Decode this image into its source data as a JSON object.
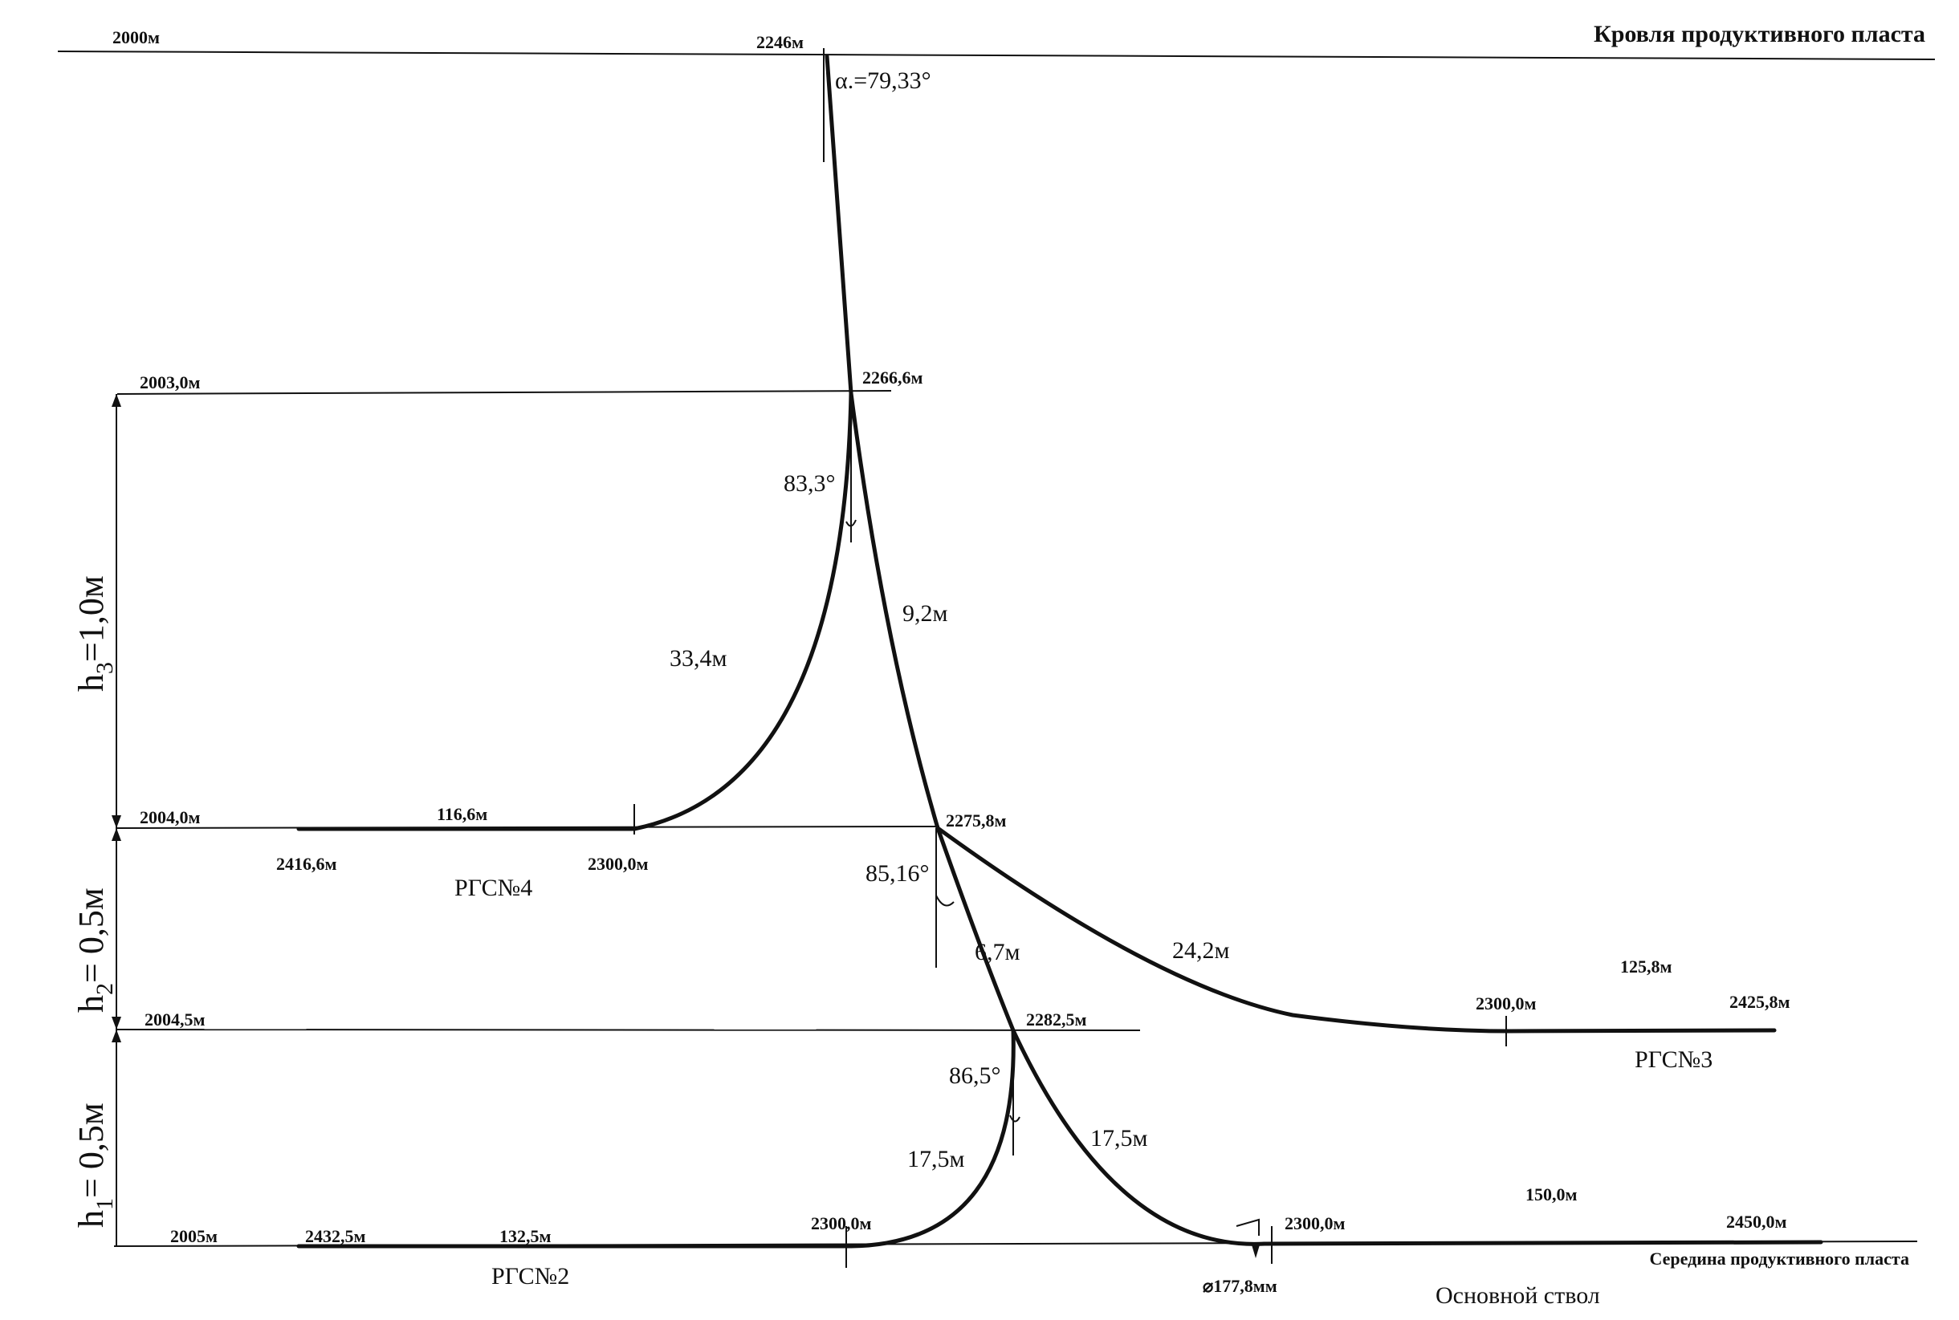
{
  "header": {
    "top_title": "Кровля продуктивного пласта",
    "mid_title": "Середина продуктивного пласта",
    "main_bore": "Основной ствол"
  },
  "levels": {
    "l0": "2000м",
    "l1": "2003,0м",
    "l2": "2004,0м",
    "l3": "2004,5м",
    "l4": "2005м"
  },
  "heights": {
    "h1_sub": "1",
    "h1_val": "= 0,5м",
    "h2_sub": "2",
    "h2_val": "= 0,5м",
    "h3_sub": "3",
    "h3_val": "=1,0м"
  },
  "main_well": {
    "top_md": "2246м",
    "entry_angle": "α.=79,33°",
    "kick1_md": "2266,6м",
    "kick2_md": "2275,8м",
    "kick3_md": "2282,5м",
    "seg1_len": "9,2м",
    "seg2_len": "6,7м",
    "seg3_len": "17,5м",
    "end_md": "2300,0м",
    "hz_len": "150,0м",
    "td": "2450,0м",
    "casing": "⌀177,8мм"
  },
  "rgs4": {
    "name": "РГС№4",
    "angle": "83,3°",
    "arc_len": "33,4м",
    "start_md": "2300,0м",
    "hz_len": "116,6м",
    "td": "2416,6м"
  },
  "rgs3": {
    "name": "РГС№3",
    "angle": "85,16°",
    "arc_len": "24,2м",
    "start_md": "2300,0м",
    "hz_len": "125,8м",
    "td": "2425,8м"
  },
  "rgs2": {
    "name": "РГС№2",
    "angle": "86,5°",
    "arc_len": "17,5м",
    "start_md": "2300,0м",
    "hz_len": "132,5м",
    "td": "2432,5м"
  }
}
